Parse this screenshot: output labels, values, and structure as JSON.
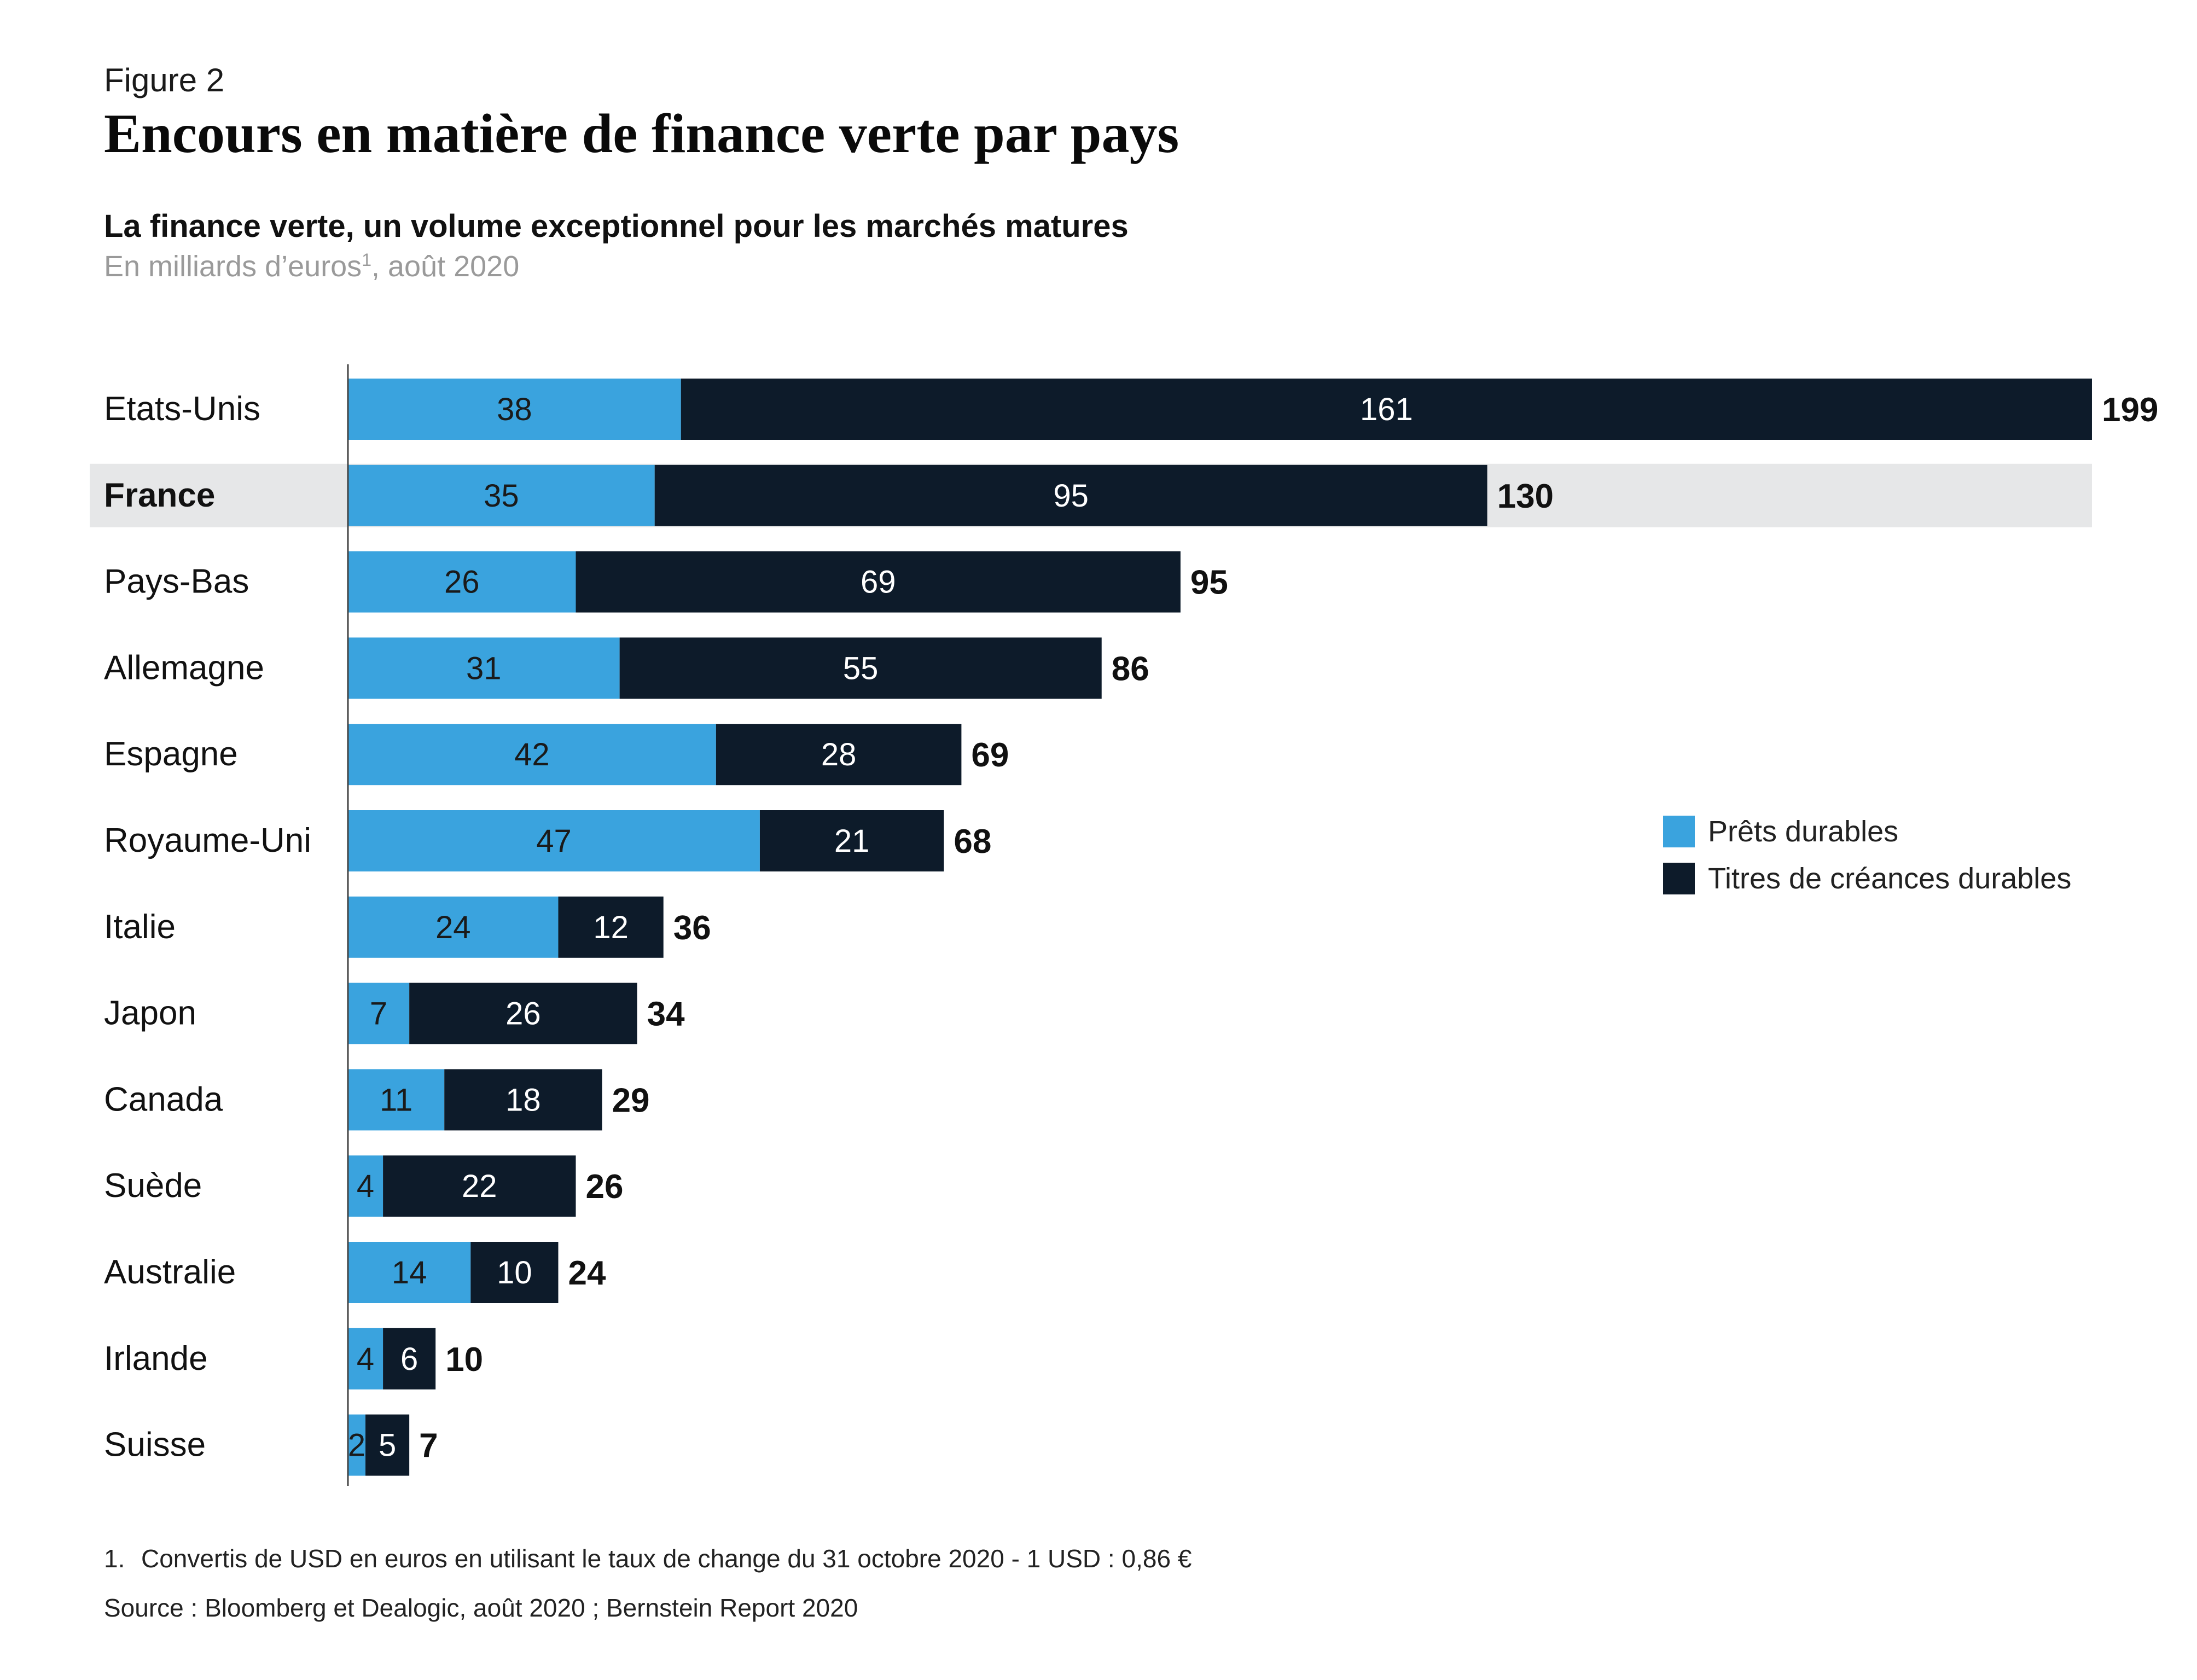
{
  "header": {
    "figure_label": "Figure 2",
    "title": "Encours en matière de finance verte par pays"
  },
  "chart_data": {
    "type": "bar",
    "orientation": "horizontal",
    "stacked": true,
    "subtitle": "La finance verte, un volume exceptionnel pour les marchés matures",
    "units": "En milliards d’euros",
    "units_footnote_ref": "1",
    "units_suffix": ", août 2020",
    "categories": [
      "Etats-Unis",
      "France",
      "Pays-Bas",
      "Allemagne",
      "Espagne",
      "Royaume-Uni",
      "Italie",
      "Japon",
      "Canada",
      "Suède",
      "Australie",
      "Irlande",
      "Suisse"
    ],
    "highlighted_category": "France",
    "series": [
      {
        "name": "Prêts durables",
        "color": "#3aa3de",
        "values": [
          38,
          35,
          26,
          31,
          42,
          47,
          24,
          7,
          11,
          4,
          14,
          4,
          2
        ]
      },
      {
        "name": "Titres de créances durables",
        "color": "#0d1b2a",
        "values": [
          161,
          95,
          69,
          55,
          28,
          21,
          12,
          26,
          18,
          22,
          10,
          6,
          5
        ]
      }
    ],
    "totals": [
      199,
      130,
      95,
      86,
      69,
      68,
      36,
      34,
      29,
      26,
      24,
      10,
      7
    ],
    "xlim": [
      0,
      199
    ],
    "grid": false,
    "legend_position": "right"
  },
  "colors": {
    "highlight_band": "#e6e7e8",
    "axis": "#444444",
    "label_on_light": "#1a1a1a",
    "label_on_dark": "#ffffff"
  },
  "footnote": {
    "number": "1.",
    "text": "Convertis de USD en euros en utilisant le taux de change du 31 octobre 2020 - 1 USD : 0,86 €"
  },
  "source": "Source : Bloomberg et Dealogic, août 2020 ; Bernstein Report 2020"
}
